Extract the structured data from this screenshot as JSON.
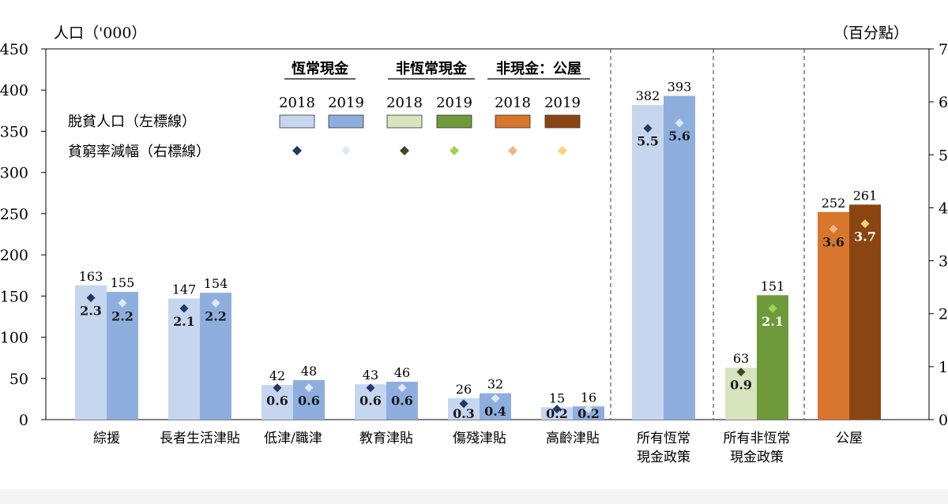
{
  "chart_data": {
    "type": "bar",
    "left_axis_title": "人口（'000）",
    "right_axis_title": "（百分點）",
    "left_ylim": [
      0,
      450
    ],
    "left_ticks": [
      "0",
      "50",
      "100",
      "150",
      "200",
      "250",
      "300",
      "350",
      "400",
      "450"
    ],
    "right_ylim": [
      0,
      7
    ],
    "right_ticks": [
      "0",
      "1",
      "2",
      "3",
      "4",
      "5",
      "6",
      "7"
    ],
    "categories": [
      "綜援",
      "長者生活津貼",
      "低津/職津",
      "教育津貼",
      "傷殘津貼",
      "高齡津貼",
      "所有恆常\n現金政策",
      "所有非恆常\n現金政策",
      "公屋"
    ],
    "series": [
      {
        "name": "2018",
        "values": [
          163,
          147,
          42,
          43,
          26,
          15,
          382,
          63,
          252
        ],
        "pct": [
          2.3,
          2.1,
          0.6,
          0.6,
          0.3,
          0.2,
          5.5,
          0.9,
          3.6
        ]
      },
      {
        "name": "2019",
        "values": [
          155,
          154,
          48,
          46,
          32,
          16,
          393,
          151,
          261
        ],
        "pct": [
          2.2,
          2.2,
          0.6,
          0.6,
          0.4,
          0.2,
          5.6,
          2.1,
          3.7
        ]
      }
    ],
    "legend": {
      "groups": [
        "恆常現金",
        "非恆常現金",
        "非現金：公屋"
      ],
      "years": [
        "2018",
        "2019",
        "2018",
        "2019",
        "2018",
        "2019"
      ],
      "row_bar_label": "脫貧人口（左標線）",
      "row_marker_label": "貧窮率減幅（右標線）"
    },
    "colors": {
      "regular_2018_bar": "#c6d6ef",
      "regular_2019_bar": "#8eaede",
      "regular_2018_marker": "#1f3864",
      "regular_2019_marker": "#dde7f5",
      "nonreg_2018_bar": "#d7e4bd",
      "nonreg_2019_bar": "#6f9a3c",
      "nonreg_2018_marker": "#3b4a1f",
      "nonreg_2019_marker": "#9bd45a",
      "housing_2018_bar": "#d8762e",
      "housing_2019_bar": "#8b4513",
      "housing_2018_marker": "#f0b48a",
      "housing_2019_marker": "#f7d67a",
      "dark_label": "#1a1a1a",
      "light_label": "#ffffff"
    }
  }
}
